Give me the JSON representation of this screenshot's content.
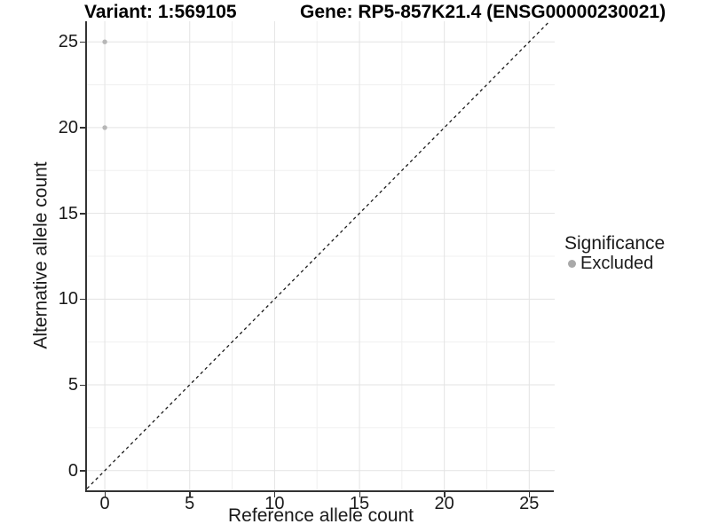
{
  "title": {
    "variant": "Variant: 1:569105",
    "gene": "Gene: RP5-857K21.4 (ENSG00000230021)"
  },
  "chart_data": {
    "type": "scatter",
    "xlabel": "Reference allele count",
    "ylabel": "Alternative allele count",
    "xlim": [
      -1.05,
      26.5
    ],
    "ylim": [
      -1.15,
      26.2
    ],
    "x_ticks": [
      0,
      5,
      10,
      15,
      20,
      25
    ],
    "y_ticks": [
      0,
      5,
      10,
      15,
      20,
      25
    ],
    "x_minor_ticks": [
      2.5,
      7.5,
      12.5,
      17.5,
      22.5
    ],
    "y_minor_ticks": [
      2.5,
      7.5,
      12.5,
      17.5,
      22.5
    ],
    "grid": true,
    "grid_major_color": "#e3e3e3",
    "grid_minor_color": "#f0f0f0",
    "series": [
      {
        "name": "Excluded",
        "color": "#b7b7b7",
        "points": [
          {
            "x": 0,
            "y": 25
          },
          {
            "x": 0,
            "y": 20
          }
        ]
      }
    ],
    "reference_line": {
      "slope": 1,
      "intercept": 0,
      "style": "dashed",
      "color": "#1a1a1a"
    }
  },
  "legend": {
    "title": "Significance",
    "position": "right",
    "items": [
      {
        "label": "Excluded",
        "color": "#a9a9a9"
      }
    ]
  }
}
